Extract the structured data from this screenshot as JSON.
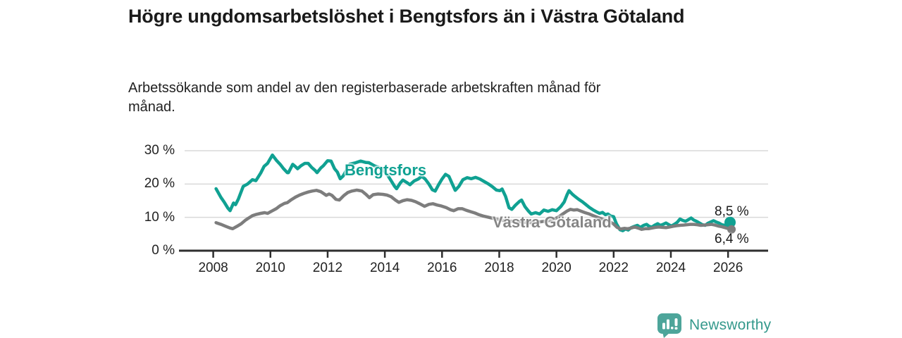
{
  "header": {
    "title": "Högre ungdomsarbetslöshet i Bengtsfors än i Västra Götaland",
    "subtitle": "Arbetssökande som andel av den registerbaserade arbetskraften månad för månad."
  },
  "footer": {
    "brand": "Newsworthy",
    "logo_icon": "newsworthy-speech-bubble-bar-chart-icon",
    "brand_text_color": "#35998c",
    "logo_color": "#4da59a"
  },
  "colors": {
    "background": "#ffffff",
    "axis": "#2e2e2e",
    "gridline": "#d9d9d9",
    "title_text": "#1a1a1a",
    "tick_text": "#222222"
  },
  "chart_data": {
    "type": "line",
    "title": "Högre ungdomsarbetslöshet i Bengtsfors än i Västra Götaland",
    "subtitle": "Arbetssökande som andel av den registerbaserade arbetskraften månad för månad.",
    "xlabel": "",
    "ylabel": "",
    "unit": "percent",
    "grid": "horizontal",
    "legend_position": "inline-labels",
    "xlim": [
      2007.0,
      2027.4
    ],
    "ylim": [
      0,
      30
    ],
    "xticks": [
      2008,
      2010,
      2012,
      2014,
      2016,
      2018,
      2020,
      2022,
      2024,
      2026
    ],
    "xtick_labels": [
      "2008",
      "2010",
      "2012",
      "2014",
      "2016",
      "2018",
      "2020",
      "2022",
      "2024",
      "2026"
    ],
    "yticks": [
      0,
      10,
      20,
      30
    ],
    "ytick_labels": [
      "0 %",
      "10 %",
      "20 %",
      "30 %"
    ],
    "series": [
      {
        "name": "Bengtsfors",
        "color": "#10a192",
        "end_label": "8,5 %",
        "end_value": 8.5,
        "end_dot_radius": 8,
        "points": [
          [
            2008.1,
            18.6
          ],
          [
            2008.27,
            16.0
          ],
          [
            2008.39,
            14.5
          ],
          [
            2008.51,
            12.8
          ],
          [
            2008.59,
            12.0
          ],
          [
            2008.71,
            14.3
          ],
          [
            2008.78,
            13.8
          ],
          [
            2008.88,
            15.5
          ],
          [
            2009.05,
            19.3
          ],
          [
            2009.2,
            20.0
          ],
          [
            2009.37,
            21.3
          ],
          [
            2009.49,
            21.0
          ],
          [
            2009.66,
            23.3
          ],
          [
            2009.78,
            25.3
          ],
          [
            2009.9,
            26.2
          ],
          [
            2009.98,
            27.4
          ],
          [
            2010.07,
            28.7
          ],
          [
            2010.22,
            27.0
          ],
          [
            2010.34,
            25.9
          ],
          [
            2010.46,
            24.6
          ],
          [
            2010.59,
            23.4
          ],
          [
            2010.63,
            23.4
          ],
          [
            2010.78,
            25.9
          ],
          [
            2010.85,
            25.4
          ],
          [
            2010.95,
            24.6
          ],
          [
            2011.07,
            25.5
          ],
          [
            2011.2,
            26.2
          ],
          [
            2011.32,
            26.2
          ],
          [
            2011.44,
            25.0
          ],
          [
            2011.56,
            24.1
          ],
          [
            2011.63,
            23.4
          ],
          [
            2011.76,
            24.8
          ],
          [
            2011.85,
            25.5
          ],
          [
            2012.0,
            27.0
          ],
          [
            2012.12,
            26.9
          ],
          [
            2012.24,
            24.6
          ],
          [
            2012.34,
            23.6
          ],
          [
            2012.44,
            21.6
          ],
          [
            2012.54,
            22.4
          ],
          [
            2012.78,
            26.0
          ],
          [
            2012.95,
            26.3
          ],
          [
            2013.15,
            26.9
          ],
          [
            2013.32,
            26.5
          ],
          [
            2013.44,
            26.4
          ],
          [
            2013.63,
            25.5
          ],
          [
            2013.78,
            25.0
          ],
          [
            2013.93,
            24.3
          ],
          [
            2014.07,
            23.0
          ],
          [
            2014.22,
            21.0
          ],
          [
            2014.34,
            19.3
          ],
          [
            2014.41,
            18.6
          ],
          [
            2014.54,
            20.3
          ],
          [
            2014.63,
            21.2
          ],
          [
            2014.76,
            20.5
          ],
          [
            2014.88,
            19.8
          ],
          [
            2015.02,
            20.9
          ],
          [
            2015.17,
            21.5
          ],
          [
            2015.29,
            22.3
          ],
          [
            2015.41,
            21.5
          ],
          [
            2015.54,
            20.0
          ],
          [
            2015.66,
            18.3
          ],
          [
            2015.76,
            17.9
          ],
          [
            2015.88,
            19.8
          ],
          [
            2016.0,
            21.5
          ],
          [
            2016.12,
            22.9
          ],
          [
            2016.24,
            22.3
          ],
          [
            2016.37,
            19.8
          ],
          [
            2016.46,
            18.1
          ],
          [
            2016.59,
            19.3
          ],
          [
            2016.73,
            21.3
          ],
          [
            2016.88,
            21.9
          ],
          [
            2017.02,
            21.6
          ],
          [
            2017.17,
            22.0
          ],
          [
            2017.32,
            21.5
          ],
          [
            2017.46,
            20.8
          ],
          [
            2017.61,
            20.1
          ],
          [
            2017.76,
            19.2
          ],
          [
            2017.9,
            18.2
          ],
          [
            2018.02,
            18.0
          ],
          [
            2018.1,
            18.5
          ],
          [
            2018.22,
            16.3
          ],
          [
            2018.34,
            12.9
          ],
          [
            2018.44,
            12.4
          ],
          [
            2018.56,
            13.6
          ],
          [
            2018.71,
            14.8
          ],
          [
            2018.78,
            15.2
          ],
          [
            2018.9,
            13.2
          ],
          [
            2019.02,
            11.9
          ],
          [
            2019.12,
            11.0
          ],
          [
            2019.27,
            11.4
          ],
          [
            2019.41,
            11.0
          ],
          [
            2019.56,
            12.2
          ],
          [
            2019.71,
            11.8
          ],
          [
            2019.85,
            12.3
          ],
          [
            2020.0,
            12.0
          ],
          [
            2020.15,
            13.2
          ],
          [
            2020.27,
            14.6
          ],
          [
            2020.37,
            16.8
          ],
          [
            2020.44,
            18.0
          ],
          [
            2020.56,
            16.9
          ],
          [
            2020.66,
            16.2
          ],
          [
            2020.78,
            15.4
          ],
          [
            2020.9,
            14.7
          ],
          [
            2021.02,
            13.9
          ],
          [
            2021.15,
            13.0
          ],
          [
            2021.27,
            12.3
          ],
          [
            2021.39,
            11.7
          ],
          [
            2021.51,
            11.2
          ],
          [
            2021.61,
            11.5
          ],
          [
            2021.71,
            10.8
          ],
          [
            2021.8,
            11.0
          ],
          [
            2021.9,
            10.4
          ],
          [
            2022.0,
            10.2
          ],
          [
            2022.1,
            8.0
          ],
          [
            2022.22,
            6.3
          ],
          [
            2022.32,
            6.0
          ],
          [
            2022.41,
            6.5
          ],
          [
            2022.51,
            6.2
          ],
          [
            2022.61,
            6.9
          ],
          [
            2022.73,
            7.3
          ],
          [
            2022.83,
            7.6
          ],
          [
            2022.93,
            7.0
          ],
          [
            2023.05,
            7.6
          ],
          [
            2023.15,
            7.9
          ],
          [
            2023.24,
            7.3
          ],
          [
            2023.34,
            7.1
          ],
          [
            2023.44,
            7.7
          ],
          [
            2023.54,
            8.1
          ],
          [
            2023.63,
            7.6
          ],
          [
            2023.73,
            7.9
          ],
          [
            2023.83,
            8.3
          ],
          [
            2023.93,
            7.8
          ],
          [
            2024.02,
            7.4
          ],
          [
            2024.12,
            7.9
          ],
          [
            2024.22,
            8.5
          ],
          [
            2024.32,
            9.5
          ],
          [
            2024.41,
            9.1
          ],
          [
            2024.51,
            8.8
          ],
          [
            2024.61,
            9.3
          ],
          [
            2024.71,
            9.8
          ],
          [
            2024.8,
            9.2
          ],
          [
            2024.9,
            8.8
          ],
          [
            2025.0,
            8.3
          ],
          [
            2025.1,
            7.8
          ],
          [
            2025.2,
            7.6
          ],
          [
            2025.29,
            8.2
          ],
          [
            2025.39,
            8.6
          ],
          [
            2025.49,
            9.0
          ],
          [
            2025.59,
            8.6
          ],
          [
            2025.68,
            8.3
          ],
          [
            2025.78,
            7.8
          ],
          [
            2025.88,
            7.6
          ],
          [
            2025.98,
            8.0
          ],
          [
            2026.07,
            8.5
          ]
        ]
      },
      {
        "name": "Västra Götaland",
        "color": "#7d7d7d",
        "end_label": "6,4 %",
        "end_value": 6.4,
        "end_dot_radius": 6,
        "points": [
          [
            2008.1,
            8.4
          ],
          [
            2008.27,
            7.9
          ],
          [
            2008.44,
            7.3
          ],
          [
            2008.59,
            6.8
          ],
          [
            2008.68,
            6.6
          ],
          [
            2008.83,
            7.3
          ],
          [
            2008.98,
            8.1
          ],
          [
            2009.12,
            9.1
          ],
          [
            2009.24,
            9.8
          ],
          [
            2009.37,
            10.5
          ],
          [
            2009.51,
            10.9
          ],
          [
            2009.66,
            11.2
          ],
          [
            2009.8,
            11.4
          ],
          [
            2009.9,
            11.2
          ],
          [
            2010.05,
            11.9
          ],
          [
            2010.2,
            12.6
          ],
          [
            2010.34,
            13.5
          ],
          [
            2010.49,
            14.2
          ],
          [
            2010.59,
            14.4
          ],
          [
            2010.73,
            15.3
          ],
          [
            2010.88,
            16.1
          ],
          [
            2011.02,
            16.7
          ],
          [
            2011.17,
            17.2
          ],
          [
            2011.32,
            17.6
          ],
          [
            2011.46,
            17.9
          ],
          [
            2011.61,
            18.1
          ],
          [
            2011.76,
            17.7
          ],
          [
            2011.85,
            17.2
          ],
          [
            2011.95,
            16.6
          ],
          [
            2012.05,
            17.0
          ],
          [
            2012.15,
            16.6
          ],
          [
            2012.29,
            15.4
          ],
          [
            2012.41,
            15.2
          ],
          [
            2012.56,
            16.5
          ],
          [
            2012.71,
            17.5
          ],
          [
            2012.85,
            17.9
          ],
          [
            2013.02,
            18.2
          ],
          [
            2013.2,
            17.9
          ],
          [
            2013.34,
            16.9
          ],
          [
            2013.46,
            15.9
          ],
          [
            2013.59,
            16.8
          ],
          [
            2013.76,
            17.0
          ],
          [
            2013.93,
            16.9
          ],
          [
            2014.07,
            16.7
          ],
          [
            2014.22,
            16.2
          ],
          [
            2014.37,
            15.2
          ],
          [
            2014.49,
            14.5
          ],
          [
            2014.63,
            15.0
          ],
          [
            2014.78,
            15.3
          ],
          [
            2014.93,
            15.1
          ],
          [
            2015.07,
            14.7
          ],
          [
            2015.22,
            14.1
          ],
          [
            2015.39,
            13.3
          ],
          [
            2015.54,
            13.9
          ],
          [
            2015.68,
            14.1
          ],
          [
            2015.83,
            13.7
          ],
          [
            2015.98,
            13.4
          ],
          [
            2016.15,
            12.9
          ],
          [
            2016.29,
            12.3
          ],
          [
            2016.41,
            12.0
          ],
          [
            2016.56,
            12.6
          ],
          [
            2016.71,
            12.6
          ],
          [
            2016.85,
            12.1
          ],
          [
            2017.0,
            11.7
          ],
          [
            2017.15,
            11.3
          ],
          [
            2017.29,
            10.8
          ],
          [
            2017.44,
            10.4
          ],
          [
            2017.59,
            10.1
          ],
          [
            2017.73,
            9.8
          ],
          [
            2017.88,
            9.5
          ],
          [
            2018.02,
            9.2
          ],
          [
            2018.2,
            9.0
          ],
          [
            2018.37,
            8.8
          ],
          [
            2018.54,
            8.9
          ],
          [
            2018.71,
            8.7
          ],
          [
            2018.88,
            8.5
          ],
          [
            2019.05,
            8.4
          ],
          [
            2019.22,
            8.5
          ],
          [
            2019.39,
            8.6
          ],
          [
            2019.56,
            8.8
          ],
          [
            2019.73,
            9.0
          ],
          [
            2019.9,
            9.4
          ],
          [
            2020.07,
            10.1
          ],
          [
            2020.22,
            11.0
          ],
          [
            2020.37,
            11.9
          ],
          [
            2020.49,
            12.4
          ],
          [
            2020.61,
            12.2
          ],
          [
            2020.73,
            12.3
          ],
          [
            2020.85,
            11.9
          ],
          [
            2021.0,
            11.4
          ],
          [
            2021.15,
            11.0
          ],
          [
            2021.29,
            10.5
          ],
          [
            2021.44,
            10.0
          ],
          [
            2021.59,
            9.5
          ],
          [
            2021.73,
            9.1
          ],
          [
            2021.88,
            8.6
          ],
          [
            2022.0,
            8.0
          ],
          [
            2022.12,
            7.0
          ],
          [
            2022.24,
            6.5
          ],
          [
            2022.37,
            6.7
          ],
          [
            2022.49,
            6.6
          ],
          [
            2022.61,
            6.8
          ],
          [
            2022.73,
            7.1
          ],
          [
            2022.85,
            6.8
          ],
          [
            2022.98,
            6.4
          ],
          [
            2023.1,
            6.6
          ],
          [
            2023.22,
            6.6
          ],
          [
            2023.34,
            6.8
          ],
          [
            2023.46,
            7.0
          ],
          [
            2023.58,
            7.1
          ],
          [
            2023.71,
            7.0
          ],
          [
            2023.83,
            6.9
          ],
          [
            2023.95,
            7.1
          ],
          [
            2024.07,
            7.3
          ],
          [
            2024.2,
            7.5
          ],
          [
            2024.32,
            7.6
          ],
          [
            2024.44,
            7.7
          ],
          [
            2024.56,
            7.8
          ],
          [
            2024.68,
            7.9
          ],
          [
            2024.8,
            7.9
          ],
          [
            2024.93,
            7.8
          ],
          [
            2025.05,
            7.6
          ],
          [
            2025.17,
            7.7
          ],
          [
            2025.29,
            7.8
          ],
          [
            2025.41,
            7.9
          ],
          [
            2025.54,
            7.7
          ],
          [
            2025.66,
            7.4
          ],
          [
            2025.78,
            7.2
          ],
          [
            2025.9,
            6.9
          ],
          [
            2026.02,
            6.6
          ],
          [
            2026.12,
            6.4
          ]
        ]
      }
    ]
  }
}
